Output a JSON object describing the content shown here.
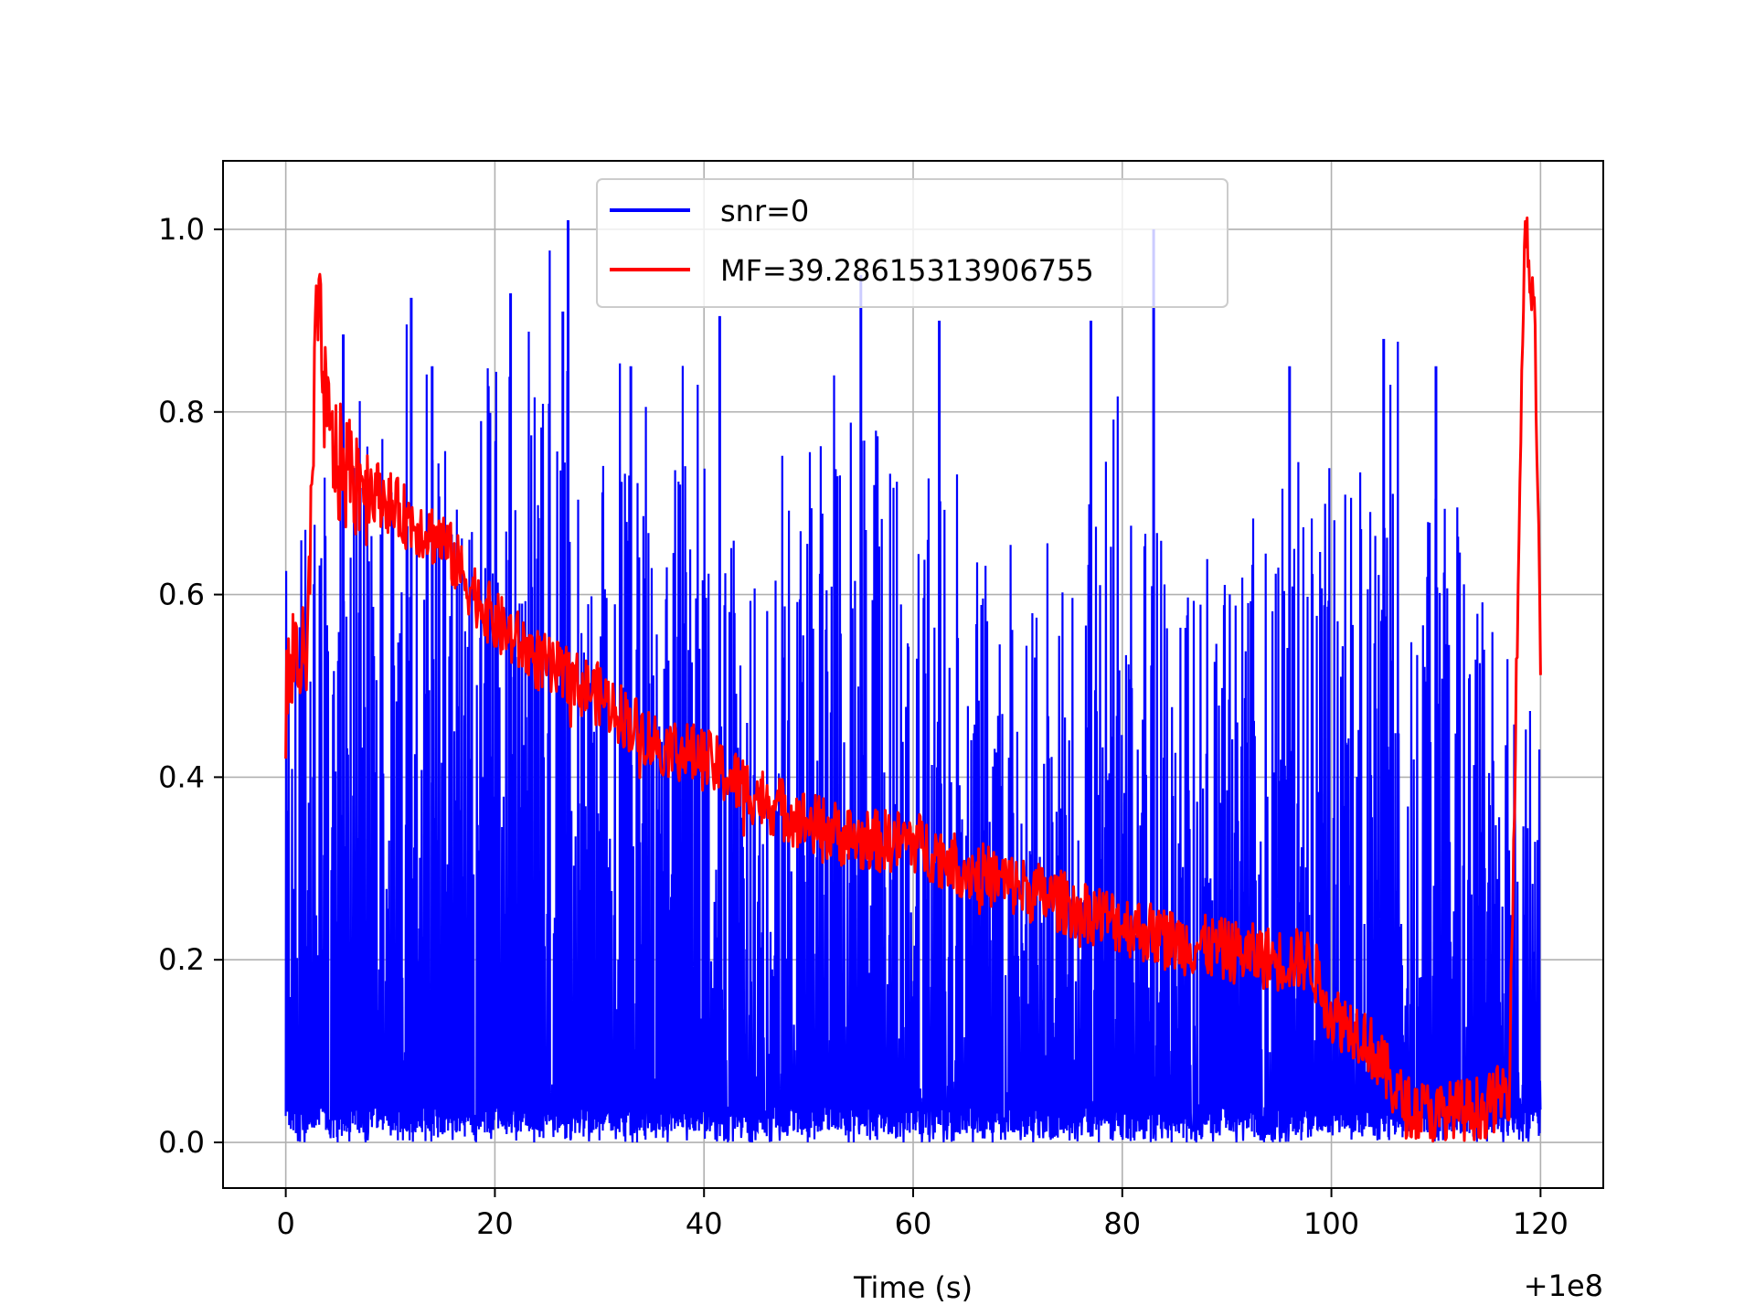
{
  "chart_data": {
    "type": "line",
    "title": "",
    "xlabel": "Time (s)",
    "ylabel": "",
    "x_offset_label": "+1e8",
    "xlim": [
      -6,
      126
    ],
    "ylim": [
      -0.05,
      1.075
    ],
    "x_ticks": [
      0,
      20,
      40,
      60,
      80,
      100,
      120
    ],
    "x_tick_labels": [
      "0",
      "20",
      "40",
      "60",
      "80",
      "100",
      "120"
    ],
    "y_ticks": [
      0.0,
      0.2,
      0.4,
      0.6,
      0.8,
      1.0
    ],
    "y_tick_labels": [
      "0.0",
      "0.2",
      "0.4",
      "0.6",
      "0.8",
      "1.0"
    ],
    "grid": true,
    "legend_position": "upper-center",
    "series": [
      {
        "name": "snr=0",
        "color": "#0000ff",
        "style": "dense noisy envelope",
        "x": [
          0,
          5,
          10,
          15,
          20,
          25,
          30,
          35,
          40,
          45,
          50,
          55,
          60,
          65,
          70,
          75,
          80,
          85,
          90,
          95,
          100,
          105,
          110,
          115,
          120
        ],
        "envelope_max": [
          0.74,
          0.88,
          0.93,
          0.92,
          0.93,
          1.01,
          0.85,
          0.88,
          0.9,
          0.75,
          0.86,
          0.97,
          0.9,
          0.74,
          0.67,
          0.72,
          1.0,
          0.7,
          0.8,
          0.79,
          0.84,
          0.9,
          0.85,
          0.72,
          0.55
        ],
        "envelope_min": [
          0.0,
          0.0,
          0.0,
          0.0,
          0.0,
          0.0,
          0.0,
          0.0,
          0.0,
          0.0,
          0.0,
          0.0,
          0.0,
          0.0,
          0.0,
          0.0,
          0.0,
          0.0,
          0.0,
          0.0,
          0.0,
          0.0,
          0.0,
          0.0,
          0.0
        ],
        "peaks": [
          {
            "x": 27,
            "y": 1.01
          },
          {
            "x": 83,
            "y": 1.0
          },
          {
            "x": 55,
            "y": 0.95
          },
          {
            "x": 21.5,
            "y": 0.93
          },
          {
            "x": 12,
            "y": 0.925
          },
          {
            "x": 41.5,
            "y": 0.905
          },
          {
            "x": 26.5,
            "y": 0.91
          },
          {
            "x": 62.5,
            "y": 0.9
          },
          {
            "x": 77,
            "y": 0.9
          },
          {
            "x": 105,
            "y": 0.88
          },
          {
            "x": 5.5,
            "y": 0.885
          },
          {
            "x": 33,
            "y": 0.85
          },
          {
            "x": 110,
            "y": 0.85
          },
          {
            "x": 96,
            "y": 0.85
          },
          {
            "x": 14,
            "y": 0.85
          }
        ]
      },
      {
        "name": "MF=39.28615313906755",
        "color": "#ff0000",
        "style": "noisy line",
        "x": [
          0,
          1,
          2,
          3,
          4,
          5,
          7,
          10,
          12,
          15,
          17,
          20,
          25,
          30,
          35,
          40,
          45,
          50,
          55,
          60,
          65,
          70,
          75,
          80,
          85,
          90,
          95,
          98,
          100,
          103,
          105,
          107,
          110,
          115,
          117,
          118.5,
          119.5,
          120
        ],
        "y": [
          0.48,
          0.55,
          0.5,
          0.92,
          0.78,
          0.74,
          0.73,
          0.7,
          0.68,
          0.66,
          0.62,
          0.57,
          0.52,
          0.49,
          0.44,
          0.42,
          0.38,
          0.35,
          0.33,
          0.33,
          0.3,
          0.28,
          0.26,
          0.24,
          0.22,
          0.21,
          0.2,
          0.2,
          0.14,
          0.12,
          0.08,
          0.04,
          0.03,
          0.04,
          0.06,
          1.02,
          0.88,
          0.53
        ]
      }
    ]
  }
}
